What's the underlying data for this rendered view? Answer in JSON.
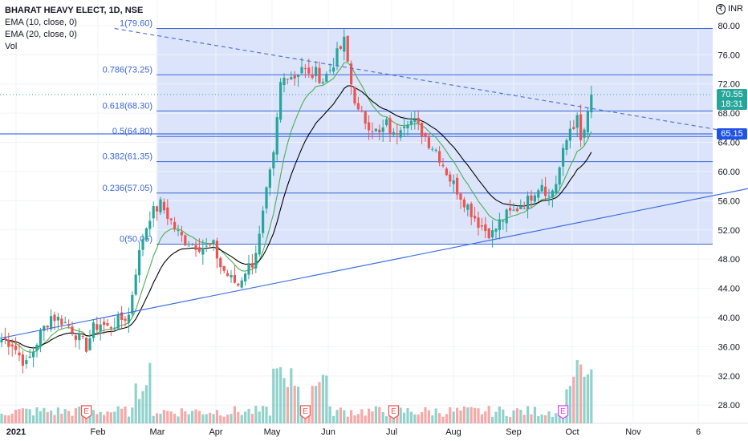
{
  "header": {
    "title": "BHARAT HEAVY ELECT, 1D, NSE",
    "indicators": [
      "EMA (10, close, 0)",
      "EMA (20, close, 0)",
      "Vol"
    ],
    "currency": "INR"
  },
  "price_tags": {
    "last": {
      "value": "70.55",
      "countdown": "18:31",
      "color": "#26a69a"
    },
    "level": {
      "value": "65.15",
      "color": "#1e53e5"
    }
  },
  "earnings_markers": [
    {
      "label": "E",
      "date_index": 24,
      "color": "#ef5350"
    },
    {
      "label": "E",
      "date_index": 86,
      "color": "#ef5350"
    },
    {
      "label": "E",
      "date_index": 111,
      "color": "#ef5350"
    },
    {
      "label": "E",
      "date_index": 159,
      "color": "#e040fb"
    }
  ],
  "chart_data": {
    "type": "candlestick",
    "title": "BHARAT HEAVY ELECT, 1D, NSE",
    "xlabel": "",
    "ylabel": "",
    "ylim": [
      25.5,
      83.5
    ],
    "y_ticks": [
      28,
      32,
      36,
      40,
      44,
      48,
      52,
      56,
      60,
      64,
      68,
      72,
      76,
      80
    ],
    "x_ticks": [
      {
        "label": "2021",
        "bold": true
      },
      {
        "label": "Feb"
      },
      {
        "label": "Mar"
      },
      {
        "label": "Apr"
      },
      {
        "label": "May"
      },
      {
        "label": "Jun"
      },
      {
        "label": "Jul"
      },
      {
        "label": "Aug"
      },
      {
        "label": "Sep"
      },
      {
        "label": "Oct"
      },
      {
        "label": "Nov"
      },
      {
        "label": "6"
      }
    ],
    "fib_levels": [
      {
        "label": "1(79.60)",
        "value": 79.6
      },
      {
        "label": "0.786(73.25)",
        "value": 73.25
      },
      {
        "label": "0.618(68.30)",
        "value": 68.3
      },
      {
        "label": "0.5(64.80)",
        "value": 64.8
      },
      {
        "label": "0.382(61.35)",
        "value": 61.35
      },
      {
        "label": "0.236(57.05)",
        "value": 57.05
      },
      {
        "label": "0(50.05)",
        "value": 50.05
      }
    ],
    "horizontal_line": 65.15,
    "series": [
      {
        "name": "BHARAT HEAVY ELECT",
        "type": "candles",
        "anchors": [
          [
            0,
            37.0
          ],
          [
            3,
            36.5
          ],
          [
            5,
            34.8
          ],
          [
            7,
            33.5
          ],
          [
            9,
            35.5
          ],
          [
            11,
            37.8
          ],
          [
            14,
            40.2
          ],
          [
            17,
            39.6
          ],
          [
            20,
            38.5
          ],
          [
            22,
            37.0
          ],
          [
            24,
            36.0
          ],
          [
            26,
            38.5
          ],
          [
            28,
            39.2
          ],
          [
            30,
            38.6
          ],
          [
            33,
            39.5
          ],
          [
            36,
            40.3
          ],
          [
            38,
            46.5
          ],
          [
            40,
            51.0
          ],
          [
            42,
            54.0
          ],
          [
            45,
            55.5
          ],
          [
            47,
            54.0
          ],
          [
            50,
            51.5
          ],
          [
            52,
            50.5
          ],
          [
            55,
            50.0
          ],
          [
            58,
            49.5
          ],
          [
            60,
            49.8
          ],
          [
            62,
            47.0
          ],
          [
            65,
            45.2
          ],
          [
            67,
            44.5
          ],
          [
            69,
            46.5
          ],
          [
            71,
            47.5
          ],
          [
            73,
            51.0
          ],
          [
            75,
            57.0
          ],
          [
            77,
            62.0
          ],
          [
            79,
            72.0
          ],
          [
            81,
            73.5
          ],
          [
            83,
            73.0
          ],
          [
            85,
            74.5
          ],
          [
            87,
            73.0
          ],
          [
            89,
            73.5
          ],
          [
            91,
            72.5
          ],
          [
            93,
            74.0
          ],
          [
            95,
            76.0
          ],
          [
            97,
            77.8
          ],
          [
            99,
            72.0
          ],
          [
            101,
            68.0
          ],
          [
            103,
            67.0
          ],
          [
            105,
            66.0
          ],
          [
            107,
            65.0
          ],
          [
            109,
            66.5
          ],
          [
            111,
            64.8
          ],
          [
            113,
            66.5
          ],
          [
            115,
            67.3
          ],
          [
            117,
            66.5
          ],
          [
            119,
            65.5
          ],
          [
            121,
            64.0
          ],
          [
            123,
            63.0
          ],
          [
            125,
            61.0
          ],
          [
            127,
            59.0
          ],
          [
            129,
            57.5
          ],
          [
            131,
            56.0
          ],
          [
            133,
            54.5
          ],
          [
            135,
            53.0
          ],
          [
            137,
            52.0
          ],
          [
            139,
            51.5
          ],
          [
            141,
            53.0
          ],
          [
            143,
            54.0
          ],
          [
            145,
            54.5
          ],
          [
            147,
            55.5
          ],
          [
            149,
            56.0
          ],
          [
            151,
            57.5
          ],
          [
            153,
            58.5
          ],
          [
            155,
            56.5
          ],
          [
            157,
            58.5
          ],
          [
            159,
            62.5
          ],
          [
            161,
            66.0
          ],
          [
            163,
            67.0
          ],
          [
            164,
            64.0
          ],
          [
            166,
            67.5
          ],
          [
            167,
            70.55
          ]
        ]
      },
      {
        "name": "EMA (10, close, 0)",
        "type": "line",
        "color": "#4caf50"
      },
      {
        "name": "EMA (20, close, 0)",
        "type": "line",
        "color": "#000000"
      },
      {
        "name": "Vol",
        "type": "volume"
      }
    ],
    "trendlines": [
      {
        "from": [
          -2,
          37.0
        ],
        "to": [
          218,
          58.3
        ],
        "style": "solid",
        "color": "#3e6ee0"
      },
      {
        "from": [
          32,
          79.6
        ],
        "to": [
          218,
          64.5
        ],
        "style": "dashed",
        "color": "#5472d9"
      }
    ]
  }
}
